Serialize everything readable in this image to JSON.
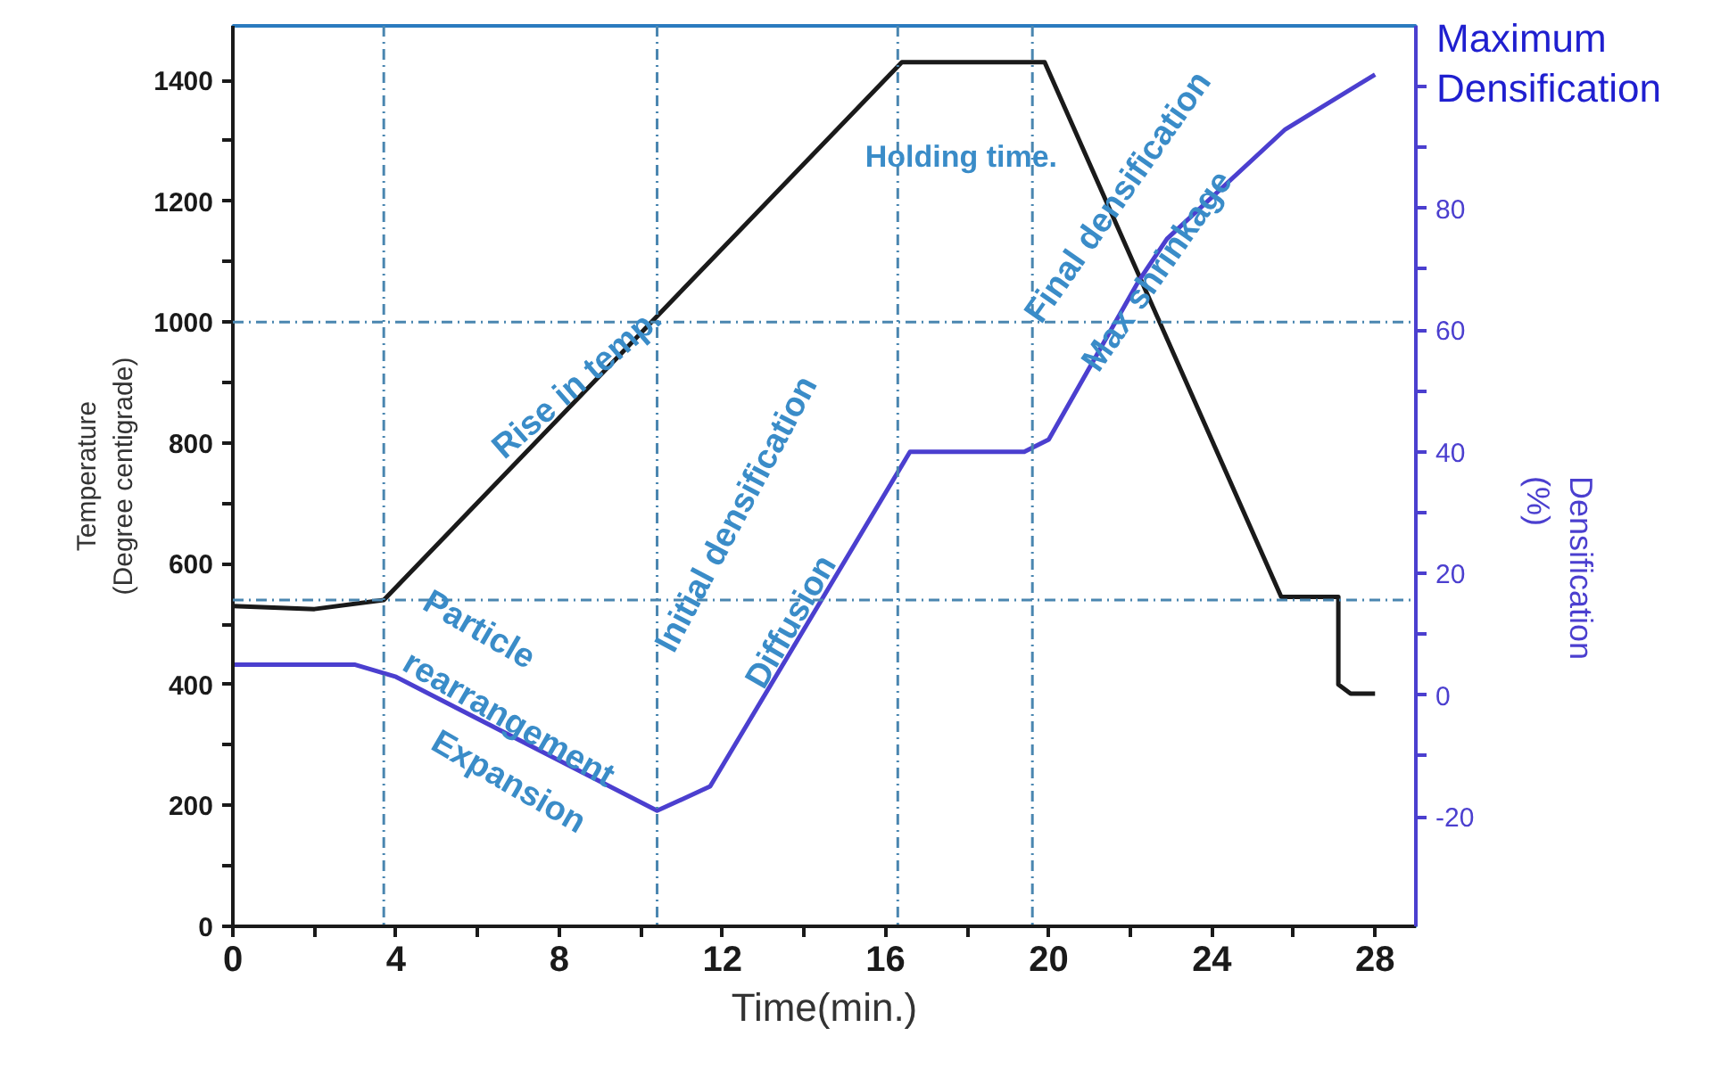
{
  "chart_data": {
    "type": "line",
    "xlabel": "Time(min.)",
    "ylabel": "Temperature\n(Degree centigrade)",
    "y2label": "Densification\n(%)",
    "x": [
      0,
      2,
      3.7,
      16.4,
      19.9,
      25.7,
      27.1,
      27.1,
      27.4,
      28
    ],
    "series": [
      {
        "color": "#1a1a1a",
        "values": [
          530,
          525,
          540,
          1430,
          1430,
          545,
          545,
          400,
          385,
          385
        ]
      },
      {
        "color": "#4b3fcf",
        "axis": "y2",
        "x": [
          0,
          3,
          4,
          10.4,
          11.7,
          16.6,
          19.4,
          20,
          22.2,
          22.9,
          25.8,
          28
        ],
        "values": [
          5,
          5,
          3,
          -19,
          -15,
          40,
          40,
          42,
          68,
          75,
          93,
          102
        ]
      }
    ],
    "xlim": [
      0,
      29
    ],
    "xticks": [
      0,
      {
        "value": 2,
        "label": null
      },
      4,
      {
        "value": 6,
        "label": null
      },
      8,
      {
        "value": 10,
        "label": null
      },
      12,
      {
        "value": 14,
        "label": null
      },
      16,
      {
        "value": 18,
        "label": null
      },
      20,
      {
        "value": 22,
        "label": null
      },
      24,
      {
        "value": 26,
        "label": null
      },
      28
    ],
    "ylim": [
      0,
      1490
    ],
    "yticks": [
      0,
      {
        "value": 100,
        "label": null
      },
      200,
      {
        "value": 300,
        "label": null
      },
      400,
      {
        "value": 500,
        "label": null
      },
      600,
      {
        "value": 700,
        "label": null
      },
      800,
      {
        "value": 900,
        "label": null
      },
      1000,
      {
        "value": 1100,
        "label": null
      },
      1200,
      {
        "value": 1300,
        "label": null
      },
      1400
    ],
    "y2lim": [
      -38,
      110
    ],
    "y2ticks": [
      -20,
      {
        "value": -10,
        "label": null
      },
      0,
      {
        "value": 10,
        "label": null
      },
      20,
      {
        "value": 30,
        "label": null
      },
      40,
      {
        "value": 50,
        "label": null
      },
      60,
      {
        "value": 70,
        "label": null
      },
      80,
      {
        "value": 90,
        "label": null
      },
      {
        "value": 100,
        "label": null
      }
    ],
    "ref_lines": [
      {
        "axis": "y",
        "value": 1000,
        "color": "#4a86b0",
        "line_style": "dashed"
      },
      {
        "axis": "y",
        "value": 540,
        "color": "#4a86b0",
        "line_style": "dashed"
      },
      {
        "axis": "x",
        "value": 3.7,
        "color": "#4a86b0",
        "line_style": "dashed"
      },
      {
        "axis": "x",
        "value": 10.4,
        "color": "#4a86b0",
        "line_style": "dashed"
      },
      {
        "axis": "x",
        "value": 16.3,
        "color": "#4a86b0",
        "line_style": "dashed"
      },
      {
        "axis": "x",
        "value": 19.6,
        "color": "#4a86b0",
        "line_style": "dashed"
      }
    ],
    "annotations": [
      "Rise in temp.",
      "Holding time.",
      "Particle",
      "rearrangement",
      "Expansion",
      "Initial densification",
      "Diffusion",
      "Final densification",
      "Max shrinkage",
      "Maximum\nDensification"
    ],
    "grid": false
  }
}
